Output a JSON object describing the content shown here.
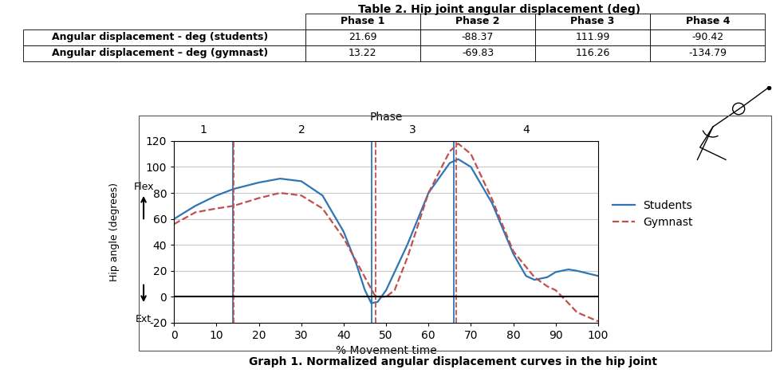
{
  "table": {
    "title": "Table 2. Hip joint angular displacement (deg)",
    "columns": [
      "Phase 1",
      "Phase 2",
      "Phase 3",
      "Phase 4"
    ],
    "rows": [
      {
        "label": "Angular displacement - deg (students)",
        "values": [
          21.69,
          -88.37,
          111.99,
          -90.42
        ]
      },
      {
        "label": "Angular displacement – deg (gymnast)",
        "values": [
          13.22,
          -69.83,
          116.26,
          -134.79
        ]
      }
    ]
  },
  "chart_data": {
    "type": "line",
    "x_label": "% Movement time",
    "y_label": "Hip angle (degrees)",
    "xlim": [
      0,
      100
    ],
    "xticks": [
      0,
      10,
      20,
      30,
      40,
      50,
      60,
      70,
      80,
      90,
      100
    ],
    "ylim": [
      -20,
      120
    ],
    "yticks": [
      -20,
      0,
      20,
      40,
      60,
      80,
      100,
      120
    ],
    "grid": true,
    "legend": "center left",
    "annotations": {
      "up": "Flex",
      "down": "Ext"
    },
    "phase_title": "Phase",
    "phases": [
      "1",
      "2",
      "3",
      "4"
    ],
    "series": [
      {
        "name": "Students",
        "color": "#2e75b6",
        "line_style": "solid",
        "x": [
          0,
          5,
          10,
          14,
          20,
          25,
          30,
          35,
          40,
          43,
          45,
          46.5,
          48,
          50,
          55,
          60,
          65,
          67,
          70,
          75,
          80,
          83,
          85,
          88,
          90,
          93,
          95,
          100
        ],
        "values": [
          60,
          70,
          78,
          83,
          88,
          91,
          89,
          78,
          50,
          25,
          5,
          -5,
          -4,
          5,
          40,
          80,
          103,
          106,
          100,
          72,
          33,
          16,
          13,
          15,
          19,
          21,
          20,
          16
        ],
        "phase_bounds": [
          13.8,
          46.5,
          66
        ]
      },
      {
        "name": "Gymnast",
        "color": "#c0504d",
        "line_style": "dashed",
        "x": [
          0,
          5,
          10,
          14,
          20,
          25,
          30,
          35,
          40,
          45,
          47.5,
          50,
          52,
          55,
          60,
          65,
          67,
          70,
          75,
          80,
          85,
          88,
          90,
          93,
          95,
          100
        ],
        "values": [
          56,
          65,
          68,
          70,
          76,
          80,
          78,
          68,
          45,
          15,
          0,
          0,
          5,
          30,
          80,
          112,
          118,
          110,
          75,
          35,
          15,
          8,
          5,
          -5,
          -12,
          -19
        ],
        "phase_bounds": [
          14,
          47.5,
          66.5
        ]
      }
    ]
  },
  "caption": "Graph 1. Normalized angular displacement curves in the hip joint"
}
